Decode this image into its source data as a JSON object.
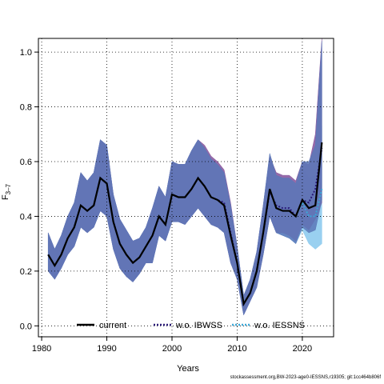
{
  "chart_data": {
    "type": "line",
    "xlabel": "Years",
    "ylabel": "F",
    "ylabel_subscript": "3–7",
    "xlim": [
      1979.5,
      2024.8
    ],
    "ylim": [
      -0.04,
      1.05
    ],
    "xticks": [
      1980,
      1990,
      2000,
      2010,
      2020
    ],
    "yticks": [
      0.0,
      0.2,
      0.4,
      0.6,
      0.8,
      1.0
    ],
    "ytick_labels": [
      "0.0",
      "0.2",
      "0.4",
      "0.6",
      "0.8",
      "1.0"
    ],
    "grid": "dotted",
    "legend_position": "bottom",
    "x": [
      1981,
      1982,
      1983,
      1984,
      1985,
      1986,
      1987,
      1988,
      1989,
      1990,
      1991,
      1992,
      1993,
      1994,
      1995,
      1996,
      1997,
      1998,
      1999,
      2000,
      2001,
      2002,
      2003,
      2004,
      2005,
      2006,
      2007,
      2008,
      2009,
      2010,
      2011,
      2012,
      2013,
      2014,
      2015,
      2016,
      2017,
      2018,
      2019,
      2020,
      2021,
      2022,
      2023
    ],
    "series": [
      {
        "name": "current",
        "color": "#000000",
        "band_color": "#5a78b8",
        "values": [
          0.26,
          0.22,
          0.26,
          0.32,
          0.36,
          0.44,
          0.42,
          0.44,
          0.54,
          0.52,
          0.38,
          0.3,
          0.26,
          0.23,
          0.25,
          0.29,
          0.33,
          0.4,
          0.37,
          0.48,
          0.47,
          0.47,
          0.5,
          0.54,
          0.51,
          0.47,
          0.46,
          0.44,
          0.33,
          0.23,
          0.08,
          0.12,
          0.2,
          0.34,
          0.5,
          0.43,
          0.42,
          0.42,
          0.4,
          0.46,
          0.43,
          0.44,
          0.67
        ],
        "lower": [
          0.2,
          0.17,
          0.21,
          0.26,
          0.29,
          0.36,
          0.34,
          0.36,
          0.42,
          0.4,
          0.28,
          0.21,
          0.18,
          0.16,
          0.19,
          0.23,
          0.23,
          0.33,
          0.31,
          0.38,
          0.38,
          0.37,
          0.4,
          0.43,
          0.4,
          0.37,
          0.36,
          0.34,
          0.23,
          0.17,
          0.04,
          0.09,
          0.14,
          0.26,
          0.4,
          0.34,
          0.33,
          0.32,
          0.3,
          0.36,
          0.34,
          0.35,
          0.46
        ],
        "upper": [
          0.34,
          0.28,
          0.33,
          0.4,
          0.45,
          0.56,
          0.53,
          0.56,
          0.68,
          0.66,
          0.48,
          0.39,
          0.35,
          0.31,
          0.32,
          0.36,
          0.43,
          0.51,
          0.47,
          0.6,
          0.59,
          0.59,
          0.64,
          0.68,
          0.65,
          0.61,
          0.59,
          0.56,
          0.44,
          0.29,
          0.11,
          0.17,
          0.27,
          0.44,
          0.63,
          0.55,
          0.54,
          0.54,
          0.52,
          0.6,
          0.6,
          0.66,
          1.04
        ]
      },
      {
        "name": "w.o. IBWSS",
        "color": "#2a1a78",
        "band_color": "#8a5aa0",
        "values": [
          0.26,
          0.22,
          0.26,
          0.32,
          0.36,
          0.44,
          0.42,
          0.44,
          0.54,
          0.52,
          0.38,
          0.3,
          0.26,
          0.23,
          0.25,
          0.29,
          0.33,
          0.4,
          0.37,
          0.48,
          0.47,
          0.47,
          0.5,
          0.54,
          0.51,
          0.47,
          0.46,
          0.45,
          0.34,
          0.23,
          0.08,
          0.12,
          0.2,
          0.34,
          0.49,
          0.44,
          0.43,
          0.43,
          0.4,
          0.46,
          0.45,
          0.5,
          0.65
        ],
        "lower": [
          0.2,
          0.17,
          0.21,
          0.26,
          0.29,
          0.36,
          0.34,
          0.36,
          0.42,
          0.4,
          0.28,
          0.21,
          0.18,
          0.16,
          0.19,
          0.23,
          0.23,
          0.33,
          0.31,
          0.38,
          0.38,
          0.37,
          0.4,
          0.43,
          0.4,
          0.37,
          0.36,
          0.34,
          0.23,
          0.17,
          0.04,
          0.09,
          0.14,
          0.26,
          0.4,
          0.34,
          0.34,
          0.33,
          0.31,
          0.37,
          0.35,
          0.39,
          0.45
        ],
        "upper": [
          0.34,
          0.28,
          0.33,
          0.4,
          0.45,
          0.56,
          0.53,
          0.56,
          0.68,
          0.66,
          0.48,
          0.39,
          0.35,
          0.31,
          0.32,
          0.36,
          0.43,
          0.51,
          0.47,
          0.6,
          0.59,
          0.59,
          0.64,
          0.68,
          0.66,
          0.62,
          0.6,
          0.57,
          0.45,
          0.29,
          0.11,
          0.17,
          0.27,
          0.44,
          0.62,
          0.56,
          0.55,
          0.55,
          0.53,
          0.6,
          0.59,
          0.7,
          1.05
        ]
      },
      {
        "name": "w.o. IESSNS",
        "color": "#3aa8d8",
        "band_color": "#8ecbee",
        "values": [
          0.26,
          0.22,
          0.26,
          0.32,
          0.36,
          0.44,
          0.42,
          0.44,
          0.54,
          0.52,
          0.38,
          0.3,
          0.26,
          0.23,
          0.25,
          0.29,
          0.33,
          0.4,
          0.37,
          0.48,
          0.47,
          0.47,
          0.5,
          0.54,
          0.51,
          0.47,
          0.46,
          0.44,
          0.33,
          0.23,
          0.08,
          0.12,
          0.2,
          0.34,
          0.5,
          0.43,
          0.42,
          0.42,
          0.4,
          0.45,
          0.4,
          0.4,
          0.5
        ],
        "lower": [
          0.2,
          0.17,
          0.21,
          0.26,
          0.29,
          0.36,
          0.34,
          0.36,
          0.42,
          0.4,
          0.28,
          0.21,
          0.18,
          0.16,
          0.19,
          0.23,
          0.23,
          0.33,
          0.31,
          0.38,
          0.38,
          0.37,
          0.4,
          0.43,
          0.4,
          0.37,
          0.36,
          0.34,
          0.23,
          0.17,
          0.04,
          0.09,
          0.14,
          0.26,
          0.4,
          0.34,
          0.33,
          0.32,
          0.3,
          0.35,
          0.3,
          0.28,
          0.3
        ],
        "upper": [
          0.34,
          0.28,
          0.33,
          0.4,
          0.45,
          0.56,
          0.53,
          0.56,
          0.68,
          0.66,
          0.48,
          0.39,
          0.35,
          0.31,
          0.32,
          0.36,
          0.43,
          0.51,
          0.47,
          0.6,
          0.59,
          0.59,
          0.64,
          0.68,
          0.65,
          0.61,
          0.59,
          0.56,
          0.44,
          0.29,
          0.11,
          0.17,
          0.27,
          0.44,
          0.62,
          0.55,
          0.54,
          0.54,
          0.51,
          0.58,
          0.54,
          0.55,
          0.73
        ]
      }
    ]
  },
  "footer_text": "stockassessment.org,BW-2023-age0-IESSNS,r19305; git:1cc464b806f"
}
